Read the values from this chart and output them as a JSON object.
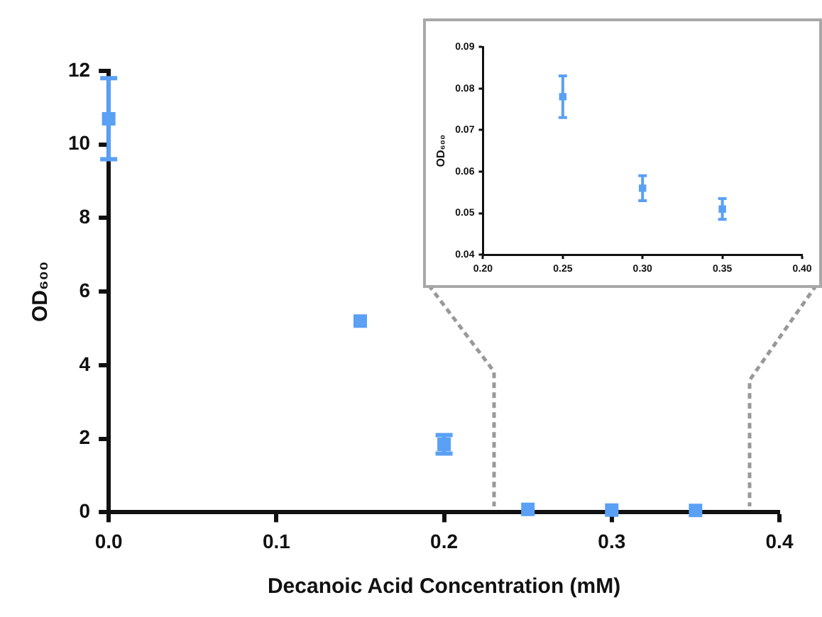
{
  "chart_data": [
    {
      "type": "scatter",
      "xlabel": "Decanoic Acid Concentration (mM)",
      "ylabel": "OD₆₀₀",
      "x": [
        0,
        0.15,
        0.2,
        0.25,
        0.3,
        0.35
      ],
      "values": [
        10.7,
        5.2,
        1.85,
        0.08,
        0.06,
        0.05
      ],
      "errors": [
        1.1,
        null,
        0.25,
        null,
        null,
        null
      ],
      "color": "#5aa0f5",
      "marker": "square",
      "grid": false,
      "legend": false,
      "xlim": [
        0,
        0.4
      ],
      "xticks": [
        {
          "value": 0,
          "label": "0.0"
        },
        {
          "value": 0.1,
          "label": "0.1"
        },
        {
          "value": 0.2,
          "label": "0.2"
        },
        {
          "value": 0.3,
          "label": "0.3"
        },
        {
          "value": 0.4,
          "label": "0.4"
        }
      ],
      "ylim": [
        0,
        12
      ],
      "yticks": [
        0,
        2,
        4,
        6,
        8,
        10,
        12
      ]
    },
    {
      "type": "scatter",
      "ylabel": "OD₆₀₀",
      "x": [
        0.25,
        0.3,
        0.35
      ],
      "values": [
        0.078,
        0.056,
        0.051
      ],
      "errors": [
        0.005,
        0.003,
        0.0025
      ],
      "color": "#5aa0f5",
      "marker": "square",
      "grid": false,
      "legend": false,
      "xlim": [
        0.2,
        0.4
      ],
      "xticks": [
        {
          "value": 0.2,
          "label": "0.20"
        },
        {
          "value": 0.25,
          "label": "0.25"
        },
        {
          "value": 0.3,
          "label": "0.30"
        },
        {
          "value": 0.35,
          "label": "0.35"
        },
        {
          "value": 0.4,
          "label": "0.40"
        }
      ],
      "ylim": [
        0.04,
        0.09
      ],
      "yticks": [
        0.04,
        0.05,
        0.06,
        0.07,
        0.08,
        0.09
      ]
    }
  ]
}
